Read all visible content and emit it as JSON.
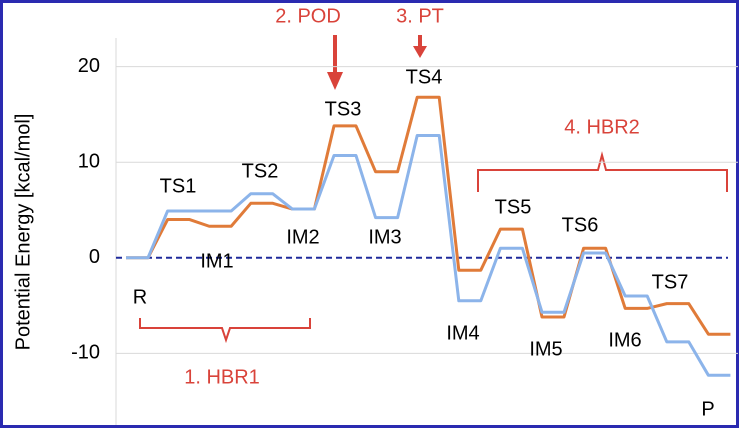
{
  "chart_data": {
    "type": "energy-profile",
    "ylabel": "Potential Energy [kcal/mol]",
    "categories": [
      "R",
      "TS1",
      "IM1",
      "TS2",
      "IM2",
      "TS3",
      "IM3",
      "TS4",
      "IM4",
      "TS5",
      "IM5",
      "TS6",
      "IM6",
      "TS7",
      "P"
    ],
    "series": [
      {
        "color": "#e07b39",
        "values": [
          0,
          4,
          3.3,
          5.7,
          5.1,
          13.8,
          9,
          16.8,
          -1.3,
          3,
          -6.2,
          1,
          -5.3,
          -4.8,
          -8
        ]
      },
      {
        "color": "#8cb4ea",
        "values": [
          0,
          4.9,
          4.9,
          6.7,
          5.1,
          10.7,
          4.2,
          12.8,
          -4.5,
          1,
          -5.7,
          0.5,
          -4,
          -8.8,
          -12.3
        ]
      }
    ],
    "ylim": [
      -17.5,
      23
    ],
    "yticks": [
      -10,
      0,
      10,
      20
    ],
    "grid": true,
    "annotations": [
      "1. HBR1",
      "2. POD",
      "3. PT",
      "4. HBR2"
    ]
  }
}
